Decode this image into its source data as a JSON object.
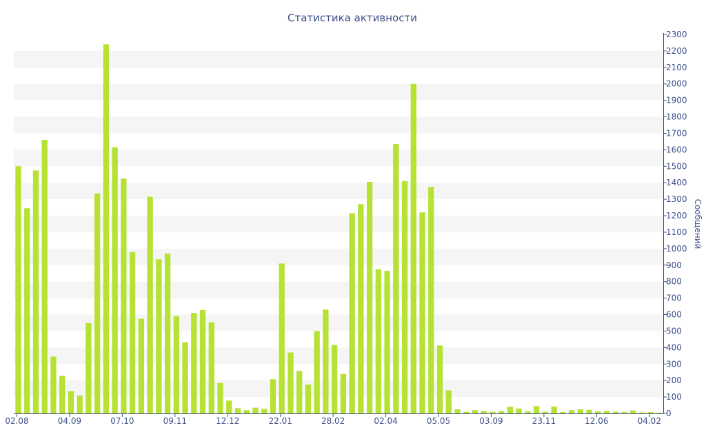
{
  "chart_data": {
    "type": "bar",
    "title": "Статистика активности",
    "xlabel": "",
    "ylabel": "Сообщений",
    "ylim": [
      0,
      2300
    ],
    "yticks": [
      0,
      100,
      200,
      300,
      400,
      500,
      600,
      700,
      800,
      900,
      1000,
      1100,
      1200,
      1300,
      1400,
      1500,
      1600,
      1700,
      1800,
      1900,
      2000,
      2100,
      2200,
      2300
    ],
    "y_axis_position": "right",
    "grid": "alternating horizontal bands",
    "bar_color": "#b5e233",
    "band_color": "#f5f5f5",
    "text_color": "#3d4f8a",
    "x_tick_labels": [
      {
        "index": 0,
        "label": "02.08"
      },
      {
        "index": 6,
        "label": "04.09"
      },
      {
        "index": 12,
        "label": "07.10"
      },
      {
        "index": 18,
        "label": "09.11"
      },
      {
        "index": 24,
        "label": "12.12"
      },
      {
        "index": 30,
        "label": "22.01"
      },
      {
        "index": 36,
        "label": "28.02"
      },
      {
        "index": 42,
        "label": "02.04"
      },
      {
        "index": 48,
        "label": "05.05"
      },
      {
        "index": 54,
        "label": "03.09"
      },
      {
        "index": 60,
        "label": "23.11"
      },
      {
        "index": 66,
        "label": "12.06"
      },
      {
        "index": 72,
        "label": "04.02"
      }
    ],
    "values": [
      1500,
      1245,
      1475,
      1660,
      345,
      228,
      135,
      108,
      548,
      1335,
      2240,
      1615,
      1425,
      980,
      575,
      1315,
      935,
      970,
      590,
      432,
      610,
      628,
      553,
      185,
      78,
      32,
      20,
      35,
      28,
      208,
      910,
      370,
      258,
      175,
      500,
      630,
      415,
      240,
      1215,
      1270,
      1405,
      875,
      865,
      1635,
      1410,
      2000,
      1220,
      1375,
      412,
      140,
      25,
      10,
      20,
      15,
      10,
      15,
      40,
      30,
      12,
      45,
      10,
      42,
      8,
      20,
      25,
      22,
      12,
      15,
      10,
      8,
      18,
      6,
      8,
      5
    ]
  }
}
